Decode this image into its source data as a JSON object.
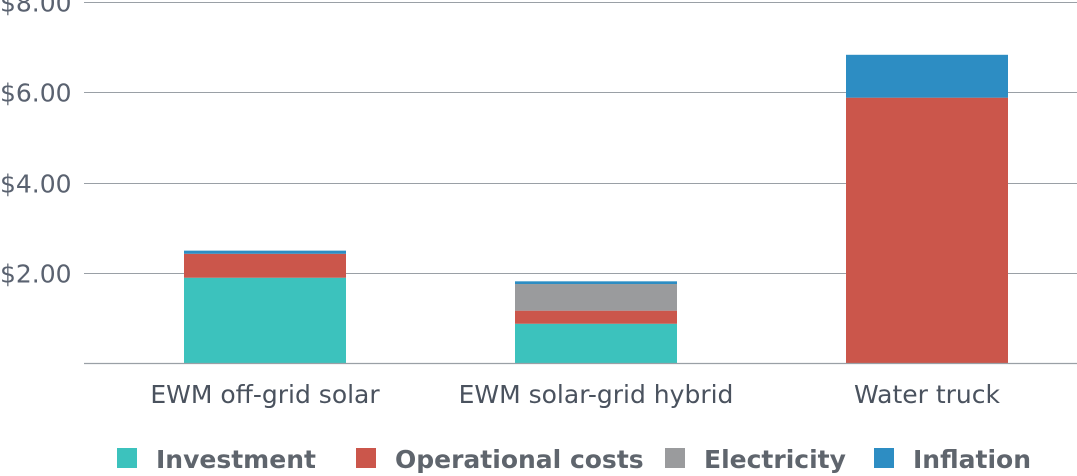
{
  "chart_data": {
    "type": "bar",
    "stacked": true,
    "title": "",
    "xlabel": "",
    "ylabel": "",
    "categories": [
      "EWM off-grid solar",
      "EWM solar-grid hybrid",
      "Water truck"
    ],
    "series": [
      {
        "name": "Investment",
        "color": "#3cc2bd",
        "values": [
          1.89,
          0.87,
          0
        ]
      },
      {
        "name": "Operational costs",
        "color": "#cb564b",
        "values": [
          0.53,
          0.29,
          5.88
        ]
      },
      {
        "name": "Electricity",
        "color": "#9a9b9d",
        "values": [
          0,
          0.59,
          0
        ]
      },
      {
        "name": "Inflation",
        "color": "#2d8dc3",
        "values": [
          0.07,
          0.06,
          0.95
        ]
      }
    ],
    "ylim": [
      0,
      8
    ],
    "yticks": [
      0,
      2,
      4,
      6,
      8
    ],
    "ytick_labels": [
      "",
      "$2.00",
      "$4.00",
      "$6.00",
      "$8.00"
    ],
    "grid": true,
    "legend_position": "bottom"
  }
}
